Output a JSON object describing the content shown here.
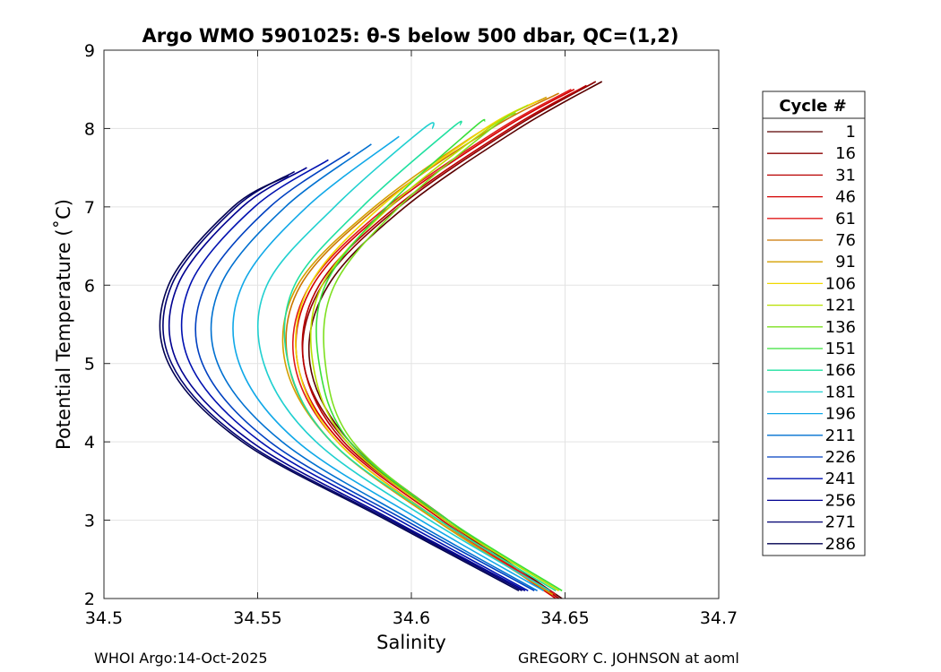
{
  "chart_data": {
    "type": "line",
    "title": "Argo WMO 5901025: θ-S below 500 dbar,  QC=(1,2)",
    "xlabel": "Salinity",
    "ylabel": "Potential Temperature (˚C)",
    "xlim": [
      34.5,
      34.7
    ],
    "ylim": [
      2,
      9
    ],
    "xticks": [
      34.5,
      34.55,
      34.6,
      34.65,
      34.7
    ],
    "xtick_labels": [
      "34.5",
      "34.55",
      "34.6",
      "34.65",
      "34.7"
    ],
    "yticks": [
      2,
      3,
      4,
      5,
      6,
      7,
      8,
      9
    ],
    "ytick_labels": [
      "2",
      "3",
      "4",
      "5",
      "6",
      "7",
      "8",
      "9"
    ],
    "grid": true,
    "legend": {
      "title": "Cycle #",
      "placement": "outside-right",
      "entries": [
        {
          "label": "1",
          "color": "#5a0000"
        },
        {
          "label": "16",
          "color": "#8b0000"
        },
        {
          "label": "31",
          "color": "#b80000"
        },
        {
          "label": "46",
          "color": "#d40000"
        },
        {
          "label": "61",
          "color": "#e01a1a"
        },
        {
          "label": "76",
          "color": "#cc7700"
        },
        {
          "label": "91",
          "color": "#d4a000"
        },
        {
          "label": "106",
          "color": "#f0d800"
        },
        {
          "label": "121",
          "color": "#b8e000"
        },
        {
          "label": "136",
          "color": "#7ee020"
        },
        {
          "label": "151",
          "color": "#3ae03a"
        },
        {
          "label": "166",
          "color": "#20e0a0"
        },
        {
          "label": "181",
          "color": "#20d0d0"
        },
        {
          "label": "196",
          "color": "#10a8e8"
        },
        {
          "label": "211",
          "color": "#0070d0"
        },
        {
          "label": "226",
          "color": "#0040c0"
        },
        {
          "label": "241",
          "color": "#0010b0"
        },
        {
          "label": "256",
          "color": "#000090"
        },
        {
          "label": "271",
          "color": "#000070"
        },
        {
          "label": "286",
          "color": "#000050"
        }
      ]
    },
    "series": [
      {
        "name": "1",
        "color": "#5a0000",
        "theta": [
          2.0,
          3.0,
          4.0,
          5.0,
          6.0,
          7.0,
          8.0,
          8.6
        ],
        "salinity": [
          34.649,
          34.612,
          34.58,
          34.567,
          34.573,
          34.598,
          34.635,
          34.662
        ]
      },
      {
        "name": "16",
        "color": "#8b0000",
        "theta": [
          2.0,
          3.0,
          4.0,
          5.0,
          6.0,
          7.0,
          8.0,
          8.6
        ],
        "salinity": [
          34.648,
          34.611,
          34.579,
          34.565,
          34.571,
          34.596,
          34.633,
          34.66
        ]
      },
      {
        "name": "31",
        "color": "#b80000",
        "theta": [
          2.0,
          3.0,
          4.0,
          5.0,
          6.0,
          7.0,
          8.0,
          8.55
        ],
        "salinity": [
          34.648,
          34.611,
          34.578,
          34.565,
          34.57,
          34.595,
          34.632,
          34.657
        ]
      },
      {
        "name": "46",
        "color": "#d40000",
        "theta": [
          2.0,
          3.0,
          4.0,
          5.0,
          6.0,
          7.0,
          8.0,
          8.5
        ],
        "salinity": [
          34.647,
          34.61,
          34.577,
          34.563,
          34.568,
          34.593,
          34.63,
          34.653
        ]
      },
      {
        "name": "61",
        "color": "#e01a1a",
        "theta": [
          2.05,
          3.0,
          4.0,
          5.0,
          6.0,
          7.0,
          8.0,
          8.5
        ],
        "salinity": [
          34.647,
          34.609,
          34.576,
          34.562,
          34.567,
          34.592,
          34.629,
          34.652
        ]
      },
      {
        "name": "76",
        "color": "#cc7700",
        "theta": [
          2.05,
          3.0,
          4.0,
          5.0,
          6.0,
          7.0,
          8.0,
          8.45
        ],
        "salinity": [
          34.646,
          34.608,
          34.574,
          34.56,
          34.564,
          34.589,
          34.626,
          34.648
        ]
      },
      {
        "name": "91",
        "color": "#d4a000",
        "theta": [
          2.05,
          3.0,
          4.0,
          5.0,
          6.0,
          7.0,
          8.0,
          8.4
        ],
        "salinity": [
          34.646,
          34.608,
          34.574,
          34.559,
          34.563,
          34.588,
          34.624,
          34.644
        ]
      },
      {
        "name": "106",
        "color": "#f0d800",
        "theta": [
          2.1,
          3.0,
          4.0,
          5.0,
          6.0,
          7.0,
          8.0,
          8.35
        ],
        "salinity": [
          34.647,
          34.609,
          34.576,
          34.563,
          34.567,
          34.59,
          34.624,
          34.641
        ]
      },
      {
        "name": "121",
        "color": "#b8e000",
        "theta": [
          2.1,
          3.0,
          4.0,
          5.0,
          6.0,
          7.0,
          8.0,
          8.3
        ],
        "salinity": [
          34.648,
          34.611,
          34.579,
          34.568,
          34.571,
          34.593,
          34.625,
          34.638
        ]
      },
      {
        "name": "136",
        "color": "#7ee020",
        "theta": [
          2.1,
          3.0,
          4.0,
          5.0,
          6.0,
          7.0,
          8.0,
          8.2
        ],
        "salinity": [
          34.649,
          34.612,
          34.581,
          34.572,
          34.575,
          34.596,
          34.626,
          34.634
        ]
      },
      {
        "name": "151",
        "color": "#3ae03a",
        "theta": [
          2.1,
          3.0,
          4.0,
          5.0,
          6.0,
          7.0,
          8.0,
          8.1
        ],
        "salinity": [
          34.649,
          34.612,
          34.58,
          34.57,
          34.572,
          34.592,
          34.62,
          34.624
        ]
      },
      {
        "name": "166",
        "color": "#20e0a0",
        "theta": [
          2.1,
          3.0,
          4.0,
          5.0,
          6.0,
          7.0,
          8.0,
          8.05
        ],
        "salinity": [
          34.647,
          34.609,
          34.574,
          34.56,
          34.562,
          34.584,
          34.613,
          34.616
        ]
      },
      {
        "name": "181",
        "color": "#20d0d0",
        "theta": [
          2.1,
          3.0,
          4.0,
          5.0,
          6.0,
          7.0,
          8.0,
          8.0
        ],
        "salinity": [
          34.645,
          34.606,
          34.569,
          34.552,
          34.553,
          34.575,
          34.604,
          34.607
        ]
      },
      {
        "name": "196",
        "color": "#10a8e8",
        "theta": [
          2.1,
          3.0,
          4.0,
          5.0,
          6.0,
          7.0,
          7.9
        ],
        "salinity": [
          34.643,
          34.603,
          34.563,
          34.544,
          34.545,
          34.566,
          34.596
        ]
      },
      {
        "name": "211",
        "color": "#0070d0",
        "theta": [
          2.1,
          3.0,
          4.0,
          5.0,
          6.0,
          7.0,
          7.8
        ],
        "salinity": [
          34.641,
          34.6,
          34.558,
          34.537,
          34.538,
          34.559,
          34.587
        ]
      },
      {
        "name": "226",
        "color": "#0040c0",
        "theta": [
          2.1,
          3.0,
          4.0,
          5.0,
          6.0,
          7.0,
          7.7
        ],
        "salinity": [
          34.64,
          34.598,
          34.554,
          34.532,
          34.533,
          34.554,
          34.58
        ]
      },
      {
        "name": "241",
        "color": "#0010b0",
        "theta": [
          2.1,
          3.0,
          4.0,
          5.0,
          6.0,
          7.0,
          7.6
        ],
        "salinity": [
          34.638,
          34.596,
          34.551,
          34.528,
          34.528,
          34.549,
          34.573
        ]
      },
      {
        "name": "256",
        "color": "#000090",
        "theta": [
          2.1,
          3.0,
          4.0,
          5.0,
          6.0,
          7.0,
          7.5
        ],
        "salinity": [
          34.637,
          34.594,
          34.548,
          34.524,
          34.524,
          34.545,
          34.566
        ]
      },
      {
        "name": "271",
        "color": "#000070",
        "theta": [
          2.1,
          3.0,
          4.0,
          5.0,
          6.0,
          7.0,
          7.45
        ],
        "salinity": [
          34.636,
          34.593,
          34.546,
          34.522,
          34.522,
          34.543,
          34.562
        ]
      },
      {
        "name": "286",
        "color": "#000050",
        "theta": [
          2.1,
          3.0,
          4.0,
          5.0,
          6.0,
          7.0,
          7.4
        ],
        "salinity": [
          34.635,
          34.592,
          34.545,
          34.521,
          34.521,
          34.542,
          34.56
        ]
      }
    ]
  },
  "footer": {
    "left": "WHOI Argo:14-Oct-2025",
    "right": "GREGORY C. JOHNSON at aoml"
  }
}
